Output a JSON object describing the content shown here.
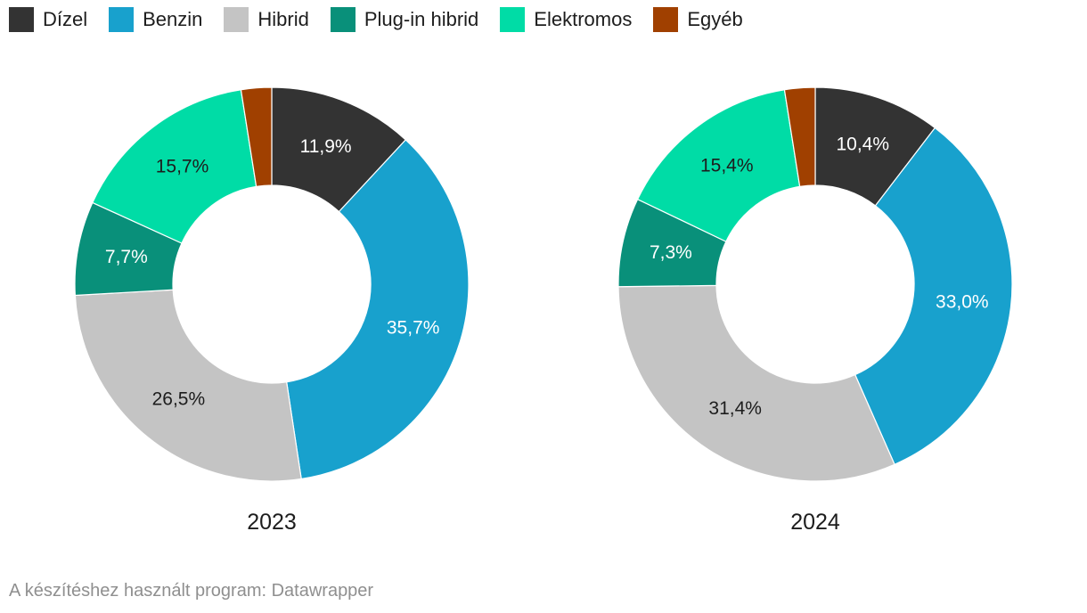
{
  "chart_data": {
    "type": "pie",
    "legend": [
      {
        "label": "Dízel",
        "color": "#333333"
      },
      {
        "label": "Benzin",
        "color": "#18a1cd"
      },
      {
        "label": "Hibrid",
        "color": "#c4c4c4"
      },
      {
        "label": "Plug-in hibrid",
        "color": "#09907a"
      },
      {
        "label": "Elektromos",
        "color": "#00dca6"
      },
      {
        "label": "Egyéb",
        "color": "#a04000"
      }
    ],
    "charts": [
      {
        "title": "2023",
        "values": [
          11.9,
          35.7,
          26.5,
          7.7,
          15.7,
          2.5
        ],
        "labels": [
          "11,9%",
          "35,7%",
          "26,5%",
          "7,7%",
          "15,7%",
          ""
        ]
      },
      {
        "title": "2024",
        "values": [
          10.4,
          33.0,
          31.4,
          7.3,
          15.4,
          2.5
        ],
        "labels": [
          "10,4%",
          "33,0%",
          "31,4%",
          "7,3%",
          "15,4%",
          ""
        ]
      }
    ]
  },
  "footer": "A készítéshez használt program: Datawrapper"
}
